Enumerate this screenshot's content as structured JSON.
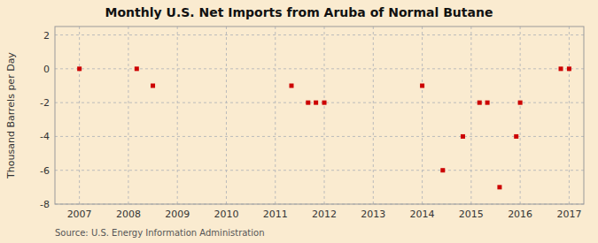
{
  "chart_data": {
    "type": "scatter",
    "title": "Monthly U.S. Net Imports from Aruba of Normal Butane",
    "ylabel": "Thousand Barrels per Day",
    "source": "Source: U.S. Energy Information Administration",
    "color": "#cc0000",
    "marker": "square",
    "grid": true,
    "xlim": [
      2006.5,
      2017.3
    ],
    "ylim": [
      -8,
      2.5
    ],
    "xticks": [
      2007,
      2008,
      2009,
      2010,
      2011,
      2012,
      2013,
      2014,
      2015,
      2016,
      2017
    ],
    "yticks": [
      -8,
      -6,
      -4,
      -2,
      0,
      2
    ],
    "x": [
      2007.0,
      2008.17,
      2008.5,
      2011.33,
      2011.67,
      2011.83,
      2012.0,
      2014.0,
      2014.42,
      2014.83,
      2015.17,
      2015.33,
      2015.58,
      2015.92,
      2016.0,
      2016.83,
      2017.0
    ],
    "values": [
      0,
      0,
      -1,
      -1,
      -2,
      -2,
      -2,
      -1,
      -6,
      -4,
      -2,
      -2,
      -7,
      -4,
      -2,
      0,
      0
    ]
  }
}
